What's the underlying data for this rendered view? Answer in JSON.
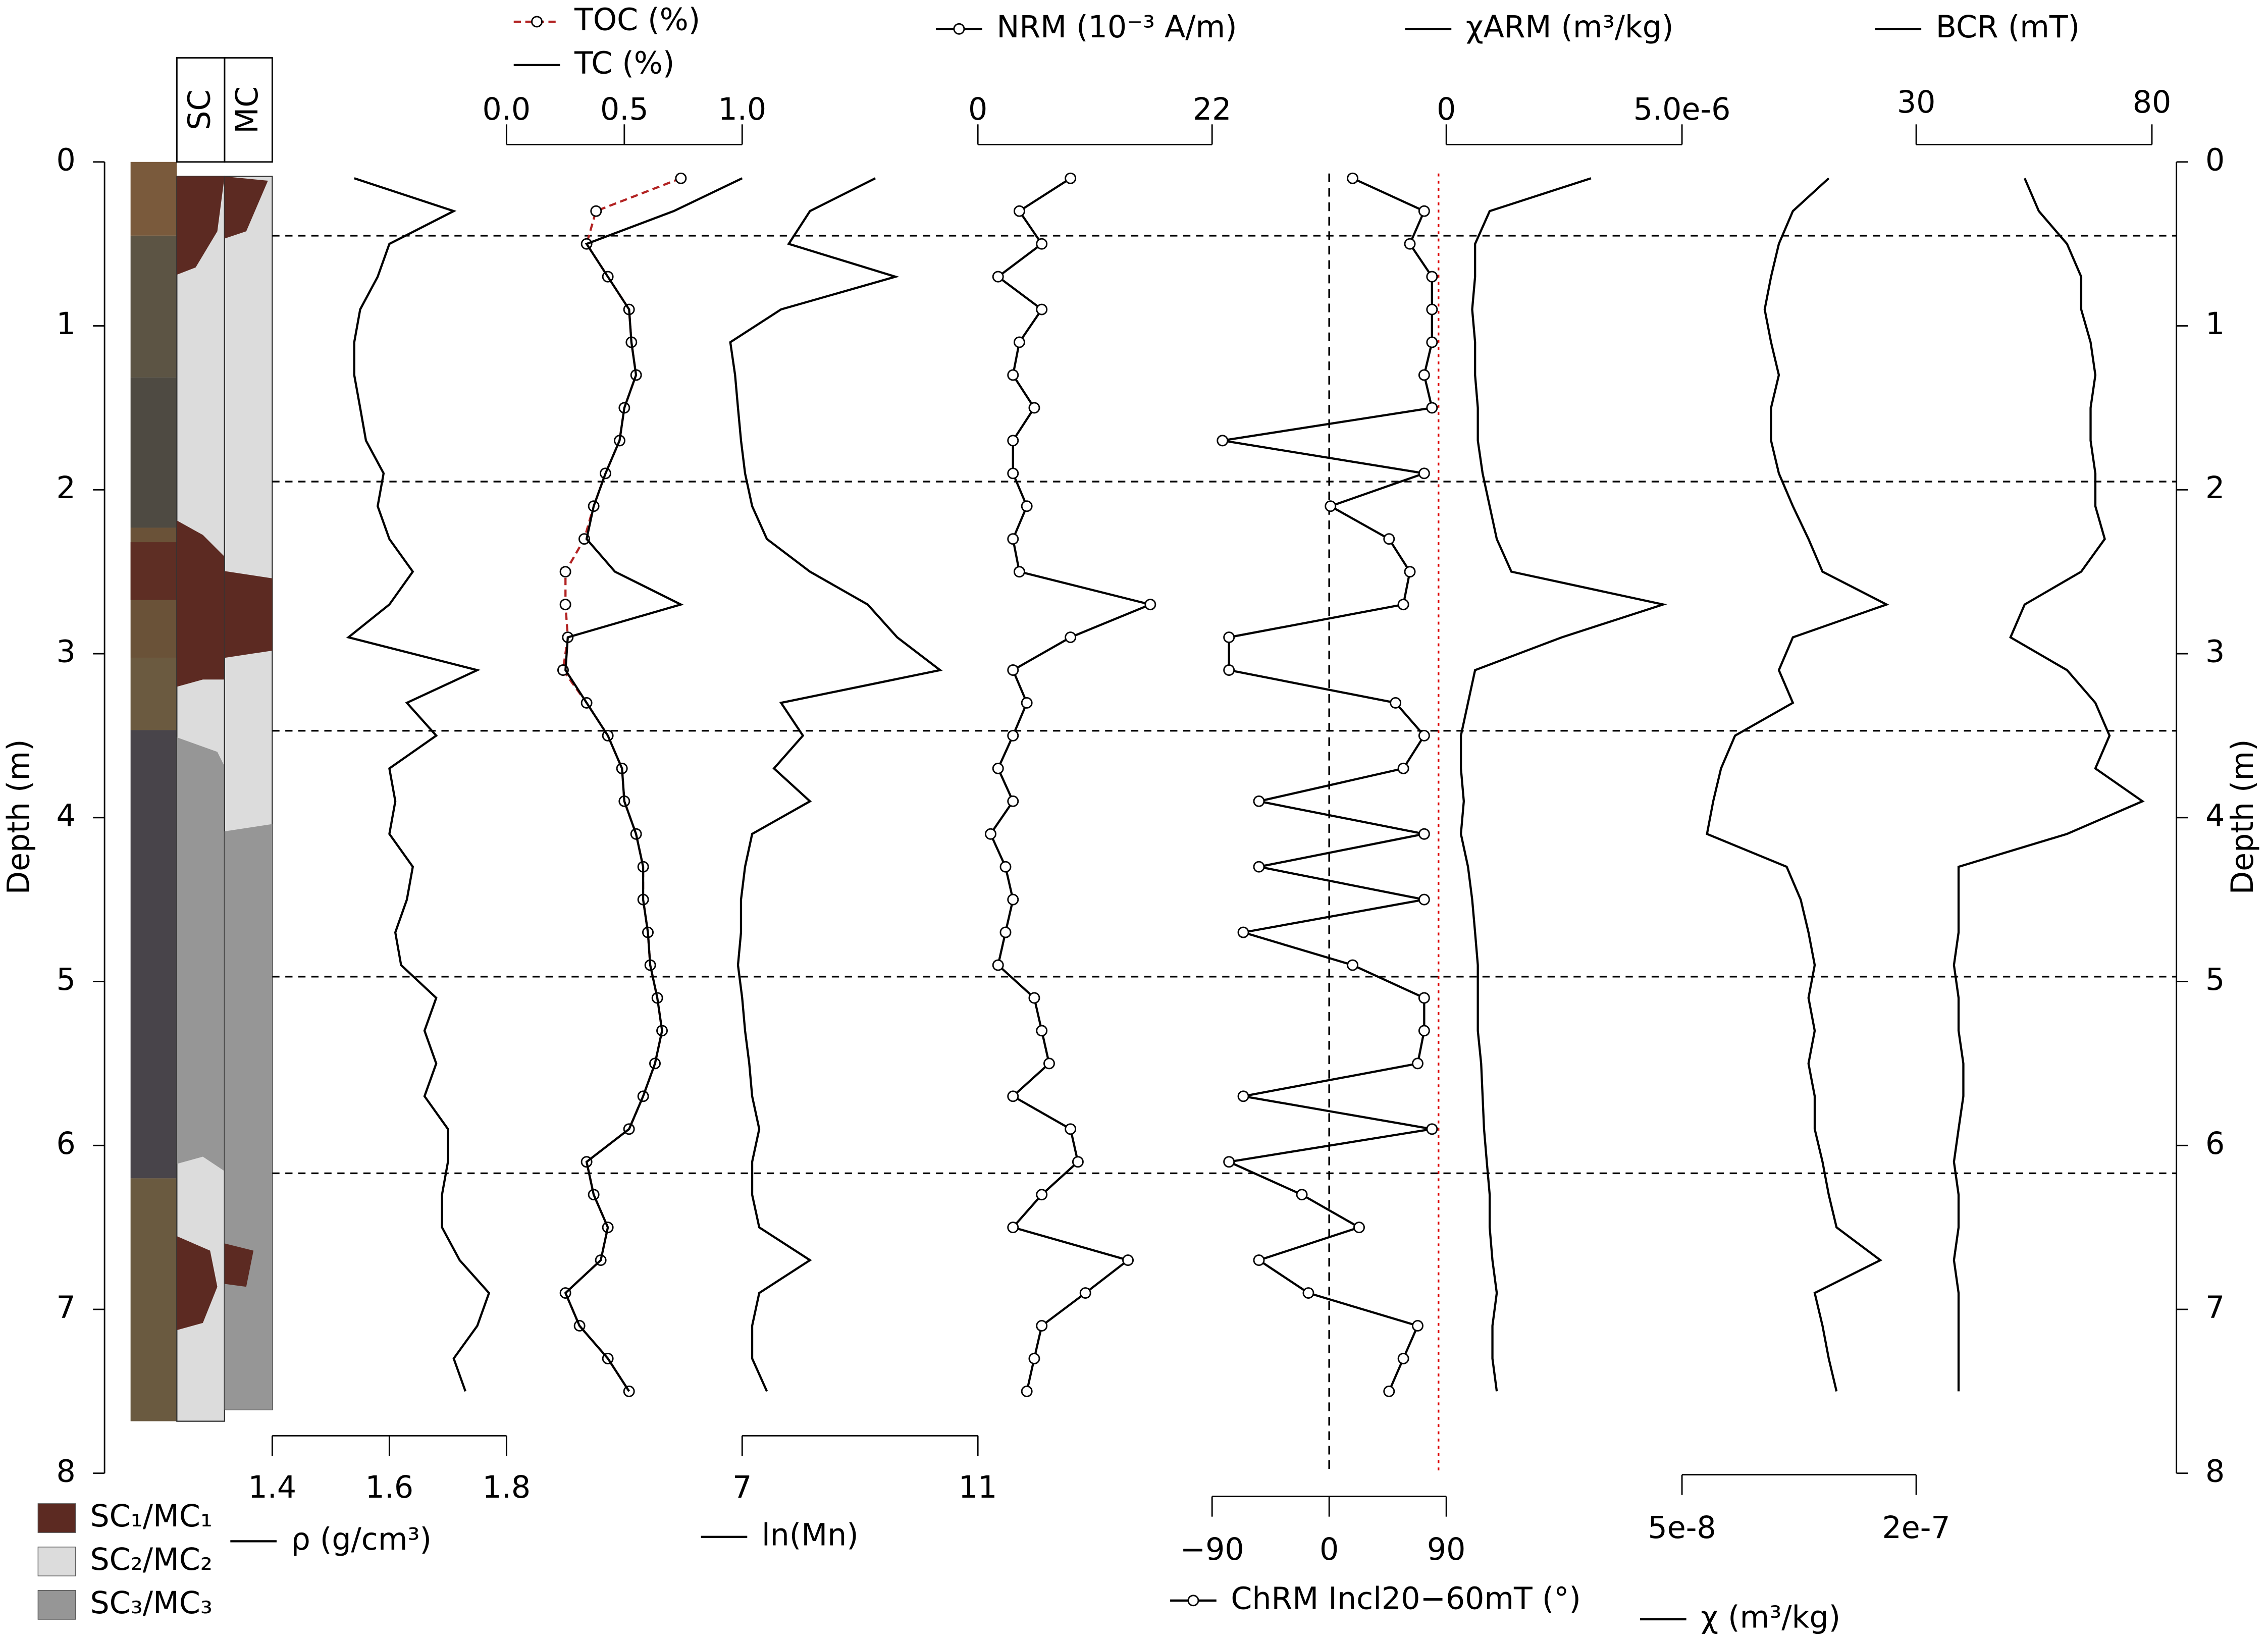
{
  "depth_axis": {
    "label": "Depth (m)",
    "ylim": [
      0,
      8
    ],
    "yticks": [
      0,
      1,
      2,
      3,
      4,
      5,
      6,
      7,
      8
    ]
  },
  "boundaries": [
    0.45,
    1.95,
    3.47,
    4.97,
    6.17
  ],
  "lithology": {
    "headers": [
      "SC",
      "MC"
    ],
    "legend": [
      "SC₁/MC₁",
      "SC₂/MC₂",
      "SC₃/MC₃"
    ],
    "colors": [
      "#5c2a22",
      "#dcdcdc",
      "#969696"
    ]
  },
  "depth": [
    0.1,
    0.3,
    0.5,
    0.7,
    0.9,
    1.1,
    1.3,
    1.5,
    1.7,
    1.9,
    2.1,
    2.3,
    2.5,
    2.7,
    2.9,
    3.1,
    3.3,
    3.5,
    3.7,
    3.9,
    4.1,
    4.3,
    4.5,
    4.7,
    4.9,
    5.1,
    5.3,
    5.5,
    5.7,
    5.9,
    6.1,
    6.3,
    6.5,
    6.7,
    6.9,
    7.1,
    7.3,
    7.5
  ],
  "chart_data": [
    {
      "type": "line",
      "axis": "bottom",
      "xlim": [
        1.4,
        1.8
      ],
      "xticks": [
        1.4,
        1.6,
        1.8
      ],
      "series": [
        {
          "name": "ρ (g/cm³)",
          "color": "#000000",
          "values": [
            1.54,
            1.71,
            1.6,
            1.58,
            1.55,
            1.54,
            1.54,
            1.55,
            1.56,
            1.59,
            1.58,
            1.6,
            1.64,
            1.6,
            1.53,
            1.75,
            1.63,
            1.68,
            1.6,
            1.61,
            1.6,
            1.64,
            1.63,
            1.61,
            1.62,
            1.68,
            1.66,
            1.68,
            1.66,
            1.7,
            1.7,
            1.69,
            1.69,
            1.72,
            1.77,
            1.75,
            1.71,
            1.73
          ]
        }
      ]
    },
    {
      "type": "line",
      "axis": "top",
      "xlim": [
        0,
        1
      ],
      "xticks": [
        {
          "value": 0,
          "label": "0.0"
        },
        0.5,
        {
          "value": 1,
          "label": "1.0"
        }
      ],
      "series": [
        {
          "name": "TOC (%)",
          "color": "#b22222",
          "dashed": true,
          "markers": true,
          "values": [
            0.74,
            0.38,
            0.34,
            0.43,
            0.52,
            0.53,
            0.55,
            0.5,
            0.48,
            0.42,
            0.37,
            0.33,
            0.25,
            0.25,
            0.26,
            0.24,
            0.34,
            0.43,
            0.49,
            0.5,
            0.55,
            0.58,
            0.58,
            0.6,
            0.61,
            0.64,
            0.66,
            0.63,
            0.58,
            0.52,
            0.34,
            0.37,
            0.43,
            0.4,
            0.25,
            0.31,
            0.43,
            0.52
          ]
        },
        {
          "name": "TC (%)",
          "color": "#000000",
          "values": [
            1.0,
            0.71,
            0.34,
            0.43,
            0.52,
            0.53,
            0.55,
            0.5,
            0.48,
            0.42,
            0.37,
            0.34,
            0.46,
            0.74,
            0.26,
            0.25,
            0.34,
            0.43,
            0.49,
            0.5,
            0.55,
            0.58,
            0.58,
            0.6,
            0.61,
            0.64,
            0.66,
            0.63,
            0.58,
            0.52,
            0.34,
            0.37,
            0.43,
            0.4,
            0.25,
            0.31,
            0.43,
            0.52
          ]
        }
      ]
    },
    {
      "type": "line",
      "axis": "bottom",
      "xlim": [
        7,
        11
      ],
      "xticks": [
        7,
        11
      ],
      "series": [
        {
          "name": "ln(Mn)",
          "color": "#000000",
          "values": [
            9.26,
            8.15,
            7.79,
            9.6,
            7.66,
            6.8,
            6.88,
            6.93,
            6.98,
            7.05,
            7.17,
            7.42,
            8.15,
            9.13,
            9.63,
            10.36,
            7.66,
            8.03,
            7.54,
            8.15,
            7.17,
            7.05,
            6.98,
            6.98,
            6.93,
            7.0,
            7.05,
            7.12,
            7.17,
            7.29,
            7.17,
            7.17,
            7.29,
            8.15,
            7.29,
            7.17,
            7.17,
            7.42
          ]
        }
      ]
    },
    {
      "type": "line",
      "axis": "top",
      "xlim": [
        0,
        22
      ],
      "xticks": [
        0,
        22
      ],
      "series": [
        {
          "name": "NRM (10⁻³ A/m)",
          "color": "#000000",
          "markers": true,
          "values": [
            8.7,
            3.9,
            6.0,
            1.9,
            6.0,
            3.9,
            3.3,
            5.3,
            3.3,
            3.3,
            4.6,
            3.3,
            3.9,
            16.2,
            8.7,
            3.3,
            4.6,
            3.3,
            1.9,
            3.3,
            1.2,
            2.6,
            3.3,
            2.6,
            1.9,
            5.3,
            6.0,
            6.7,
            3.3,
            8.7,
            9.4,
            6.0,
            3.3,
            14.1,
            10.1,
            6.0,
            5.3,
            4.6
          ]
        }
      ]
    },
    {
      "type": "line",
      "axis": "bottom",
      "xlim": [
        -90,
        90
      ],
      "xticks": [
        {
          "value": -90,
          "label": "−90"
        },
        0,
        90
      ],
      "reference_lines": [
        {
          "value": 0,
          "color": "#000000"
        },
        {
          "value": 84,
          "color": "#dd0000"
        }
      ],
      "series": [
        {
          "name": "ChRM Incl20−60mT (°)",
          "color": "#000000",
          "markers": true,
          "values": [
            18,
            73,
            62,
            79,
            79,
            79,
            73,
            79,
            -82,
            73,
            1,
            46,
            62,
            57,
            -77,
            -77,
            51,
            73,
            57,
            -54,
            73,
            -54,
            73,
            -66,
            18,
            73,
            73,
            68,
            -66,
            79,
            -77,
            -21,
            23,
            -54,
            -16,
            68,
            57,
            46
          ]
        }
      ]
    },
    {
      "type": "line",
      "axis": "top",
      "xlim": [
        0,
        5e-06
      ],
      "xticks": [
        0,
        {
          "value": 5e-06,
          "label": "5.0e-6"
        }
      ],
      "series": [
        {
          "name": "χARM (m³/kg)",
          "color": "#000000",
          "values": [
            3.07e-06,
            9.2e-07,
            6.1e-07,
            6.1e-07,
            5.5e-07,
            6.1e-07,
            6.1e-07,
            6.7e-07,
            6.7e-07,
            7.7e-07,
            9.2e-07,
            1.07e-06,
            1.38e-06,
            4.6e-06,
            2.45e-06,
            6.1e-07,
            4.6e-07,
            3.1e-07,
            3.1e-07,
            3.7e-07,
            3.1e-07,
            4.6e-07,
            5.5e-07,
            6.1e-07,
            6.7e-07,
            6.7e-07,
            6.7e-07,
            7.4e-07,
            7.7e-07,
            8e-07,
            8.6e-07,
            9.2e-07,
            9.2e-07,
            9.8e-07,
            1.07e-06,
            9.8e-07,
            9.8e-07,
            1.07e-06
          ]
        }
      ]
    },
    {
      "type": "line",
      "axis": "bottom",
      "xlim": [
        5e-08,
        2e-07
      ],
      "xticks": [
        {
          "value": 5e-08,
          "label": "5e-8"
        },
        {
          "value": 2e-07,
          "label": "2e-7"
        }
      ],
      "series": [
        {
          "name": "χ (m³/kg)",
          "color": "#000000",
          "values": [
            1.44e-07,
            1.21e-07,
            1.12e-07,
            1.07e-07,
            1.03e-07,
            1.07e-07,
            1.12e-07,
            1.07e-07,
            1.07e-07,
            1.12e-07,
            1.21e-07,
            1.31e-07,
            1.4e-07,
            1.81e-07,
            1.21e-07,
            1.12e-07,
            1.21e-07,
            8.4e-08,
            7.5e-08,
            7e-08,
            6.6e-08,
            1.17e-07,
            1.26e-07,
            1.31e-07,
            1.35e-07,
            1.31e-07,
            1.35e-07,
            1.31e-07,
            1.35e-07,
            1.35e-07,
            1.4e-07,
            1.44e-07,
            1.49e-07,
            1.77e-07,
            1.35e-07,
            1.4e-07,
            1.44e-07,
            1.49e-07
          ]
        }
      ]
    },
    {
      "type": "line",
      "axis": "top",
      "xlim": [
        30,
        80
      ],
      "xticks": [
        30,
        80
      ],
      "series": [
        {
          "name": "BCR (mT)",
          "color": "#000000",
          "values": [
            53,
            56,
            62,
            65,
            65,
            67,
            68,
            67,
            67,
            68,
            68,
            70,
            65,
            53,
            50,
            62,
            68,
            71,
            68,
            78,
            62,
            39,
            39,
            39,
            38,
            39,
            39,
            40,
            40,
            39,
            38,
            39,
            39,
            38,
            39,
            39,
            39,
            39
          ]
        }
      ]
    }
  ]
}
